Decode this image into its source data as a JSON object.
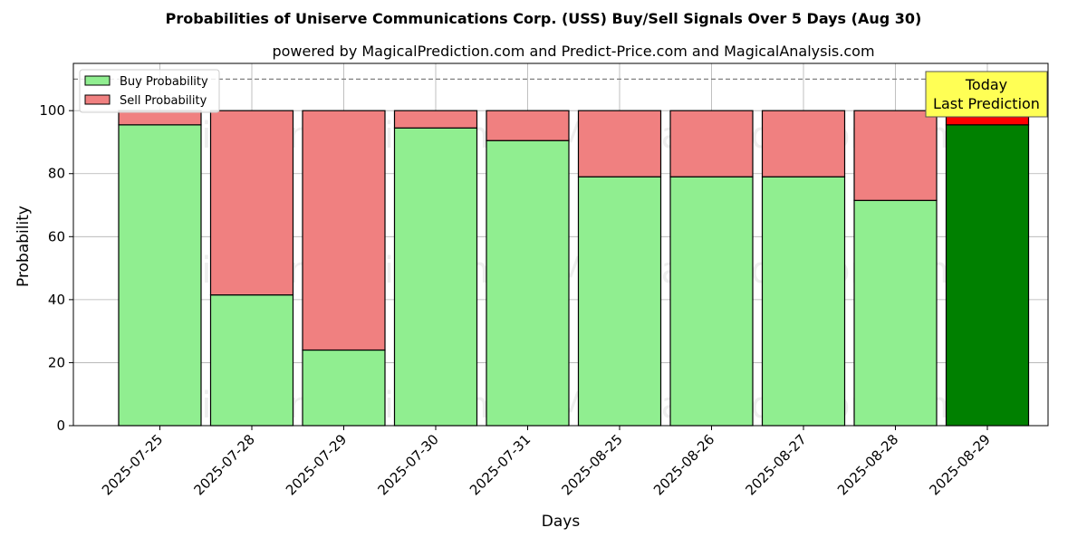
{
  "chart_data": {
    "type": "bar",
    "stacked": true,
    "title": "Probabilities of Uniserve Communications Corp. (USS) Buy/Sell Signals Over 5 Days (Aug 30)",
    "subtitle": "powered by MagicalPrediction.com and Predict-Price.com and MagicalAnalysis.com",
    "xlabel": "Days",
    "ylabel": "Probability",
    "ylim": [
      0,
      115
    ],
    "yticks": [
      0,
      20,
      40,
      60,
      80,
      100
    ],
    "grid": true,
    "legend_placement": "top-left",
    "categories": [
      "2025-07-25",
      "2025-07-28",
      "2025-07-29",
      "2025-07-30",
      "2025-07-31",
      "2025-08-25",
      "2025-08-26",
      "2025-08-27",
      "2025-08-28",
      "2025-08-29"
    ],
    "series": [
      {
        "name": "Buy Probability",
        "color": "#90ee90",
        "highlight_color": "#008000",
        "values": [
          95.5,
          41.5,
          24.0,
          94.5,
          90.5,
          79.0,
          79.0,
          79.0,
          71.5,
          95.5
        ]
      },
      {
        "name": "Sell Probability",
        "color": "#f08080",
        "highlight_color": "#ff0000",
        "values": [
          4.5,
          58.5,
          76.0,
          5.5,
          9.5,
          21.0,
          21.0,
          21.0,
          28.5,
          4.5
        ]
      }
    ],
    "reference_line": {
      "y": 110,
      "style": "dashed",
      "color": "#808080"
    },
    "annotation": {
      "lines": [
        "Today",
        "Last Prediction"
      ],
      "background": "#ffff55",
      "target_category": "2025-08-29"
    },
    "watermarks": [
      "MagicalAnalysis.com",
      "MagicalPrediction.com"
    ]
  }
}
